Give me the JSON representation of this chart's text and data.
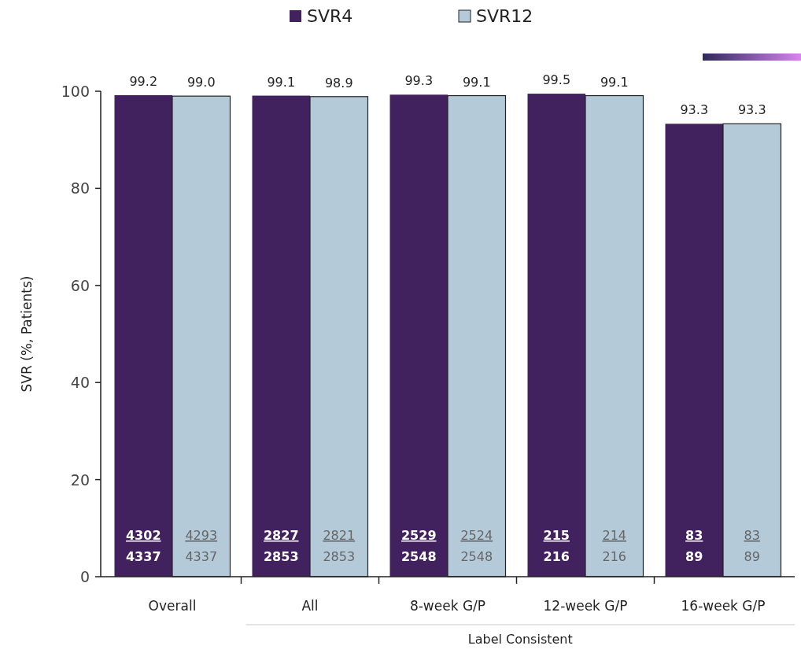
{
  "chart_data": {
    "type": "bar",
    "ylabel": "SVR (%, Patients)",
    "categories": [
      "Overall",
      "All",
      "8-week G/P",
      "12-week G/P",
      "16-week G/P"
    ],
    "series": [
      {
        "name": "SVR4",
        "color": "#42215f",
        "values": [
          99.2,
          99.1,
          99.3,
          99.5,
          93.3
        ],
        "value_labels": [
          "99.2",
          "99.1",
          "99.3",
          "99.5",
          "93.3"
        ]
      },
      {
        "name": "SVR12",
        "color": "#b4cad8",
        "values": [
          99.0,
          98.9,
          99.1,
          99.1,
          93.3
        ],
        "value_labels": [
          "99.0",
          "98.9",
          "99.1",
          "99.1",
          "93.3"
        ]
      }
    ],
    "ylim": [
      0,
      100
    ],
    "yticks": [
      0,
      20,
      40,
      60,
      80,
      100
    ],
    "legend": "top",
    "grid": false,
    "annotations": [
      {
        "text": "4302",
        "x": "Overall",
        "y": 8.6
      },
      {
        "text": "4337",
        "x": "Overall",
        "y": 4.2
      },
      {
        "text": "4293",
        "x": "Overall",
        "y": 8.6
      },
      {
        "text": "4337",
        "x": "Overall",
        "y": 4.2
      },
      {
        "text": "2827",
        "x": "All",
        "y": 8.6
      },
      {
        "text": "2853",
        "x": "All",
        "y": 4.2
      },
      {
        "text": "2821",
        "x": "All",
        "y": 8.6
      },
      {
        "text": "2853",
        "x": "All",
        "y": 4.2
      },
      {
        "text": "2529",
        "x": "8-week G/P",
        "y": 8.6
      },
      {
        "text": "2548",
        "x": "8-week G/P",
        "y": 4.2
      },
      {
        "text": "2524",
        "x": "8-week G/P",
        "y": 8.6
      },
      {
        "text": "2548",
        "x": "8-week G/P",
        "y": 4.2
      },
      {
        "text": "215",
        "x": "12-week G/P",
        "y": 8.6
      },
      {
        "text": "216",
        "x": "12-week G/P",
        "y": 4.2
      },
      {
        "text": "214",
        "x": "12-week G/P",
        "y": 8.6
      },
      {
        "text": "216",
        "x": "12-week G/P",
        "y": 4.2
      },
      {
        "text": "83",
        "x": "16-week G/P",
        "y": 8.6
      },
      {
        "text": "89",
        "x": "16-week G/P",
        "y": 4.2
      },
      {
        "text": "83",
        "x": "16-week G/P",
        "y": 8.6
      },
      {
        "text": "89",
        "x": "16-week G/P",
        "y": 4.2
      },
      "Label Consistent"
    ]
  }
}
